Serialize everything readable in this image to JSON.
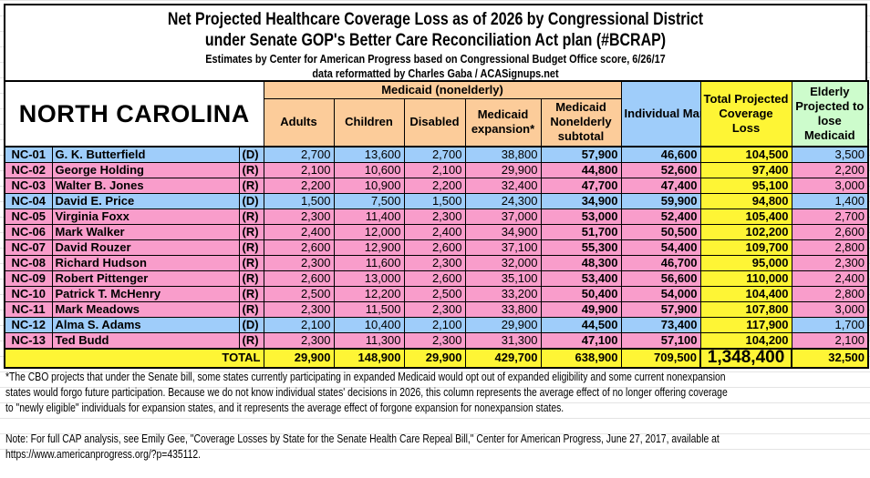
{
  "title": {
    "line1": "Net Projected Healthcare Coverage Loss as of 2026 by Congressional District",
    "line2": "under Senate GOP's Better Care Reconciliation Act plan (#BCRAP)",
    "line3": "Estimates by Center for American Progress based on Congressional Budget Office score, 6/26/17",
    "line4": "data reformatted by Charles Gaba / ACASignups.net"
  },
  "state": "NORTH CAROLINA",
  "headers": {
    "medicaid_group": "Medicaid (nonelderly)",
    "adults": "Adults",
    "children": "Children",
    "disabled": "Disabled",
    "expansion": "Medicaid expansion*",
    "subtotal": "Medicaid Nonelderly subtotal",
    "individual": "Individual Market",
    "total": "Total Projected Coverage Loss",
    "elderly": "Elderly Projected to lose Medicaid"
  },
  "colors": {
    "democrat": "#9fcdfa",
    "republican": "#f99dcb",
    "medicaid_header": "#fccc9a",
    "total": "#fef535",
    "elderly_header": "#cdfccc"
  },
  "rows": [
    [
      "NC-01",
      "G. K. Butterfield",
      "(D)",
      "2,700",
      "13,600",
      "2,700",
      "38,800",
      "57,900",
      "46,600",
      "104,500",
      "3,500"
    ],
    [
      "NC-02",
      "George Holding",
      "(R)",
      "2,100",
      "10,600",
      "2,100",
      "29,900",
      "44,800",
      "52,600",
      "97,400",
      "2,200"
    ],
    [
      "NC-03",
      "Walter B. Jones",
      "(R)",
      "2,200",
      "10,900",
      "2,200",
      "32,400",
      "47,700",
      "47,400",
      "95,100",
      "3,000"
    ],
    [
      "NC-04",
      "David E. Price",
      "(D)",
      "1,500",
      "7,500",
      "1,500",
      "24,300",
      "34,900",
      "59,900",
      "94,800",
      "1,400"
    ],
    [
      "NC-05",
      "Virginia Foxx",
      "(R)",
      "2,300",
      "11,400",
      "2,300",
      "37,000",
      "53,000",
      "52,400",
      "105,400",
      "2,700"
    ],
    [
      "NC-06",
      "Mark Walker",
      "(R)",
      "2,400",
      "12,000",
      "2,400",
      "34,900",
      "51,700",
      "50,500",
      "102,200",
      "2,600"
    ],
    [
      "NC-07",
      "David Rouzer",
      "(R)",
      "2,600",
      "12,900",
      "2,600",
      "37,100",
      "55,300",
      "54,400",
      "109,700",
      "2,800"
    ],
    [
      "NC-08",
      "Richard Hudson",
      "(R)",
      "2,300",
      "11,600",
      "2,300",
      "32,000",
      "48,300",
      "46,700",
      "95,000",
      "2,300"
    ],
    [
      "NC-09",
      "Robert Pittenger",
      "(R)",
      "2,600",
      "13,000",
      "2,600",
      "35,100",
      "53,400",
      "56,600",
      "110,000",
      "2,400"
    ],
    [
      "NC-10",
      "Patrick T. McHenry",
      "(R)",
      "2,500",
      "12,200",
      "2,500",
      "33,200",
      "50,400",
      "54,000",
      "104,400",
      "2,800"
    ],
    [
      "NC-11",
      "Mark Meadows",
      "(R)",
      "2,300",
      "11,500",
      "2,300",
      "33,800",
      "49,900",
      "57,900",
      "107,800",
      "3,000"
    ],
    [
      "NC-12",
      "Alma S. Adams",
      "(D)",
      "2,100",
      "10,400",
      "2,100",
      "29,900",
      "44,500",
      "73,400",
      "117,900",
      "1,700"
    ],
    [
      "NC-13",
      "Ted Budd",
      "(R)",
      "2,300",
      "11,300",
      "2,300",
      "31,300",
      "47,100",
      "57,100",
      "104,200",
      "2,100"
    ]
  ],
  "totals": {
    "label": "TOTAL",
    "adults": "29,900",
    "children": "148,900",
    "disabled": "29,900",
    "expansion": "429,700",
    "subtotal": "638,900",
    "individual": "709,500",
    "total": "1,348,400",
    "elderly": "32,500"
  },
  "footnotes": {
    "asterisk": "*The CBO projects that under the Senate bill, some states currently participating in expanded Medicaid would opt out of expanded eligibility and some current nonexpansion states would forgo future participation. Because we do not know individual states' decisions in 2026, this column represents the average effect of no longer offering coverage to \"newly eligible\" individuals for expansion states, and it represents the average effect of forgone expansion for nonexpansion states.",
    "note": "Note: For full CAP analysis, see Emily Gee, \"Coverage Losses by State for the Senate Health Care Repeal Bill,\" Center for American Progress, June 27, 2017, available at https://www.americanprogress.org/?p=435112."
  }
}
